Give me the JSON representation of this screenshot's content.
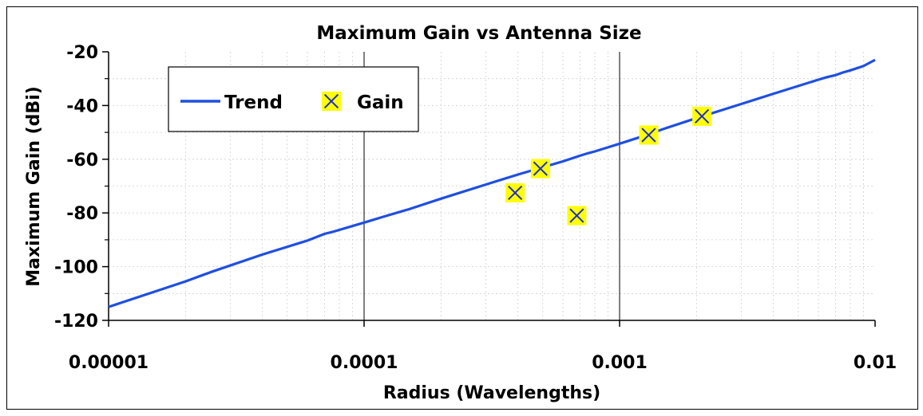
{
  "chart_data": {
    "type": "scatter",
    "title": "Maximum Gain vs Antenna Size",
    "xlabel": "Radius (Wavelengths)",
    "ylabel": "Maximum Gain (dBi)",
    "xscale": "log",
    "xlim": [
      1e-05,
      0.01
    ],
    "ylim": [
      -120,
      -20
    ],
    "xticks": [
      1e-05,
      0.0001,
      0.001,
      0.01
    ],
    "xtick_labels": [
      "0.00001",
      "0.0001",
      "0.001",
      "0.01"
    ],
    "yticks": [
      -20,
      -40,
      -60,
      -80,
      -100,
      -120
    ],
    "ytick_labels": [
      "-20",
      "-40",
      "-60",
      "-80",
      "-100",
      "-120"
    ],
    "grid": true,
    "legend_position": "top-left",
    "series": [
      {
        "name": "Trend",
        "style": "line",
        "color": "#1f4fe0",
        "x": [
          1e-05,
          2e-05,
          2.5e-05,
          4e-05,
          6e-05,
          7e-05,
          7.5e-05,
          0.0001,
          0.00012,
          0.00015,
          0.0002,
          0.0003,
          0.0004,
          0.0006,
          0.0007,
          0.00075,
          0.0008,
          0.001,
          0.0012,
          0.0015,
          0.002,
          0.003,
          0.004,
          0.006,
          0.0065,
          0.007,
          0.0075,
          0.008,
          0.009,
          0.01
        ],
        "y": [
          -115,
          -105.5,
          -102.1,
          -95.5,
          -90.3,
          -87.8,
          -87.1,
          -83.6,
          -81.3,
          -78.6,
          -74.7,
          -69.4,
          -65.7,
          -60.8,
          -58.7,
          -57.8,
          -57.1,
          -54.2,
          -51.8,
          -48.6,
          -44.7,
          -39.4,
          -35.6,
          -30.4,
          -29.4,
          -28.7,
          -27.7,
          -26.9,
          -25.3,
          -23.0
        ]
      },
      {
        "name": "Gain",
        "style": "markers",
        "marker": "x-on-yellow-square",
        "marker_fill": "#ffff00",
        "marker_stroke": "#1f2fc8",
        "x": [
          0.00039,
          0.00049,
          0.00068,
          0.0013,
          0.0021
        ],
        "y": [
          -72.5,
          -63.5,
          -81,
          -51,
          -44
        ]
      }
    ]
  }
}
